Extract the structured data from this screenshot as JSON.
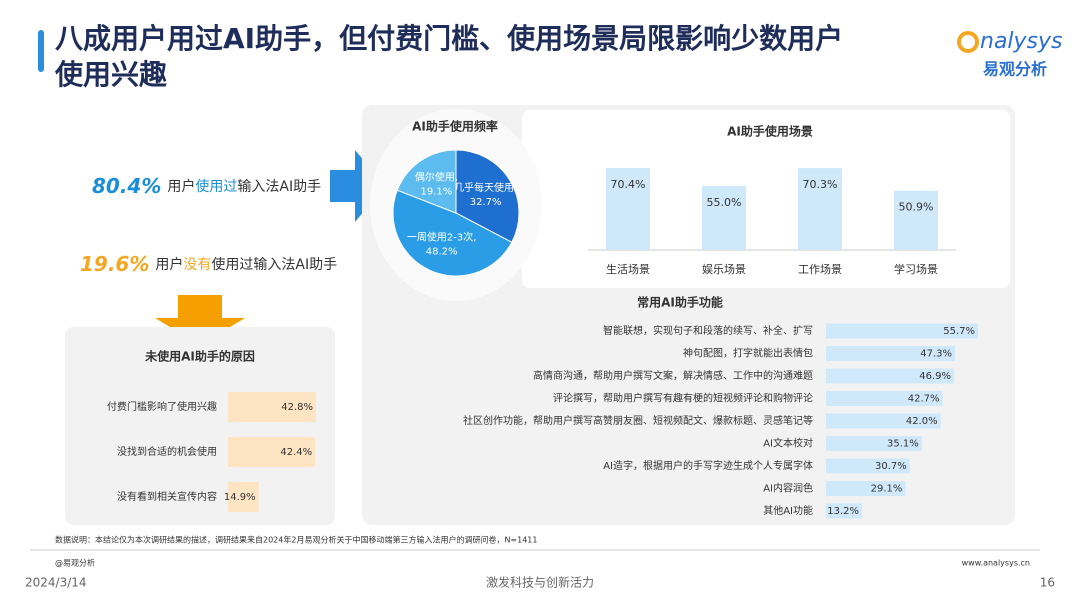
{
  "header": {
    "title_line1": "八成用户用过AI助手，但付费门槛、使用场景局限影响少数用户",
    "title_line2": "使用兴趣",
    "logo": "nalysys",
    "logo_cn": "易观分析"
  },
  "stats": [
    {
      "value_label": "80.4%",
      "parts": [
        "用户",
        "使用过",
        "输入法AI助手"
      ]
    },
    {
      "value_label": "19.6%",
      "parts": [
        "用户",
        "没有",
        "使用过输入法AI助手"
      ]
    }
  ],
  "chart_data": [
    {
      "type": "pie",
      "title": "AI助手使用频率",
      "categories": [
        "几乎每天使用,",
        "一周使用2-3次,",
        "偶尔使用,"
      ],
      "values": [
        32.7,
        48.2,
        19.1
      ],
      "value_labels": [
        "32.7%",
        "48.2%",
        "19.1%"
      ],
      "colors": [
        "#1e6fd0",
        "#2a9de6",
        "#5cbcf0"
      ]
    },
    {
      "type": "bar",
      "title": "AI助手使用场景",
      "categories": [
        "生活场景",
        "娱乐场景",
        "工作场景",
        "学习场景"
      ],
      "values": [
        70.4,
        55.0,
        70.3,
        50.9
      ],
      "value_labels": [
        "70.4%",
        "55.0%",
        "70.3%",
        "50.9%"
      ],
      "color": "#cfe9fb"
    },
    {
      "type": "hbar",
      "title": "常用AI助手功能",
      "categories": [
        "智能联想，实现句子和段落的续写、补全、扩写",
        "神句配图，打字就能出表情包",
        "高情商沟通，帮助用户撰写文案，解决情感、工作中的沟通难题",
        "评论撰写，帮助用户撰写有趣有梗的短视频评论和购物评论",
        "社区创作功能，帮助用户撰写高赞朋友圈、短视频配文、爆款标题、灵感笔记等",
        "AI文本校对",
        "AI造字，根据用户的手写字迹生成个人专属字体",
        "AI内容润色",
        "其他AI功能"
      ],
      "values": [
        55.7,
        47.3,
        46.9,
        42.7,
        42.0,
        35.1,
        30.7,
        29.1,
        13.2
      ],
      "value_labels": [
        "55.7%",
        "47.3%",
        "46.9%",
        "42.7%",
        "42.0%",
        "35.1%",
        "30.7%",
        "29.1%",
        "13.2%"
      ],
      "color": "#cfe9fb"
    },
    {
      "type": "hbar",
      "title": "未使用AI助手的原因",
      "categories": [
        "付费门槛影响了使用兴趣",
        "没找到合适的机会使用",
        "没有看到相关宣传内容"
      ],
      "values": [
        42.8,
        42.4,
        14.9
      ],
      "value_labels": [
        "42.8%",
        "42.4%",
        "14.9%"
      ],
      "color": "#fde5c4"
    }
  ],
  "footer": {
    "note": "数据说明：本结论仅为本次调研结果的描述，调研结果来自2024年2月易观分析关于中国移动端第三方输入法用户的调研问卷，N=1411",
    "source": "@易观分析",
    "website": "www.analysys.cn",
    "date": "2024/3/14",
    "tagline": "激发科技与创新活力",
    "page": "16"
  }
}
